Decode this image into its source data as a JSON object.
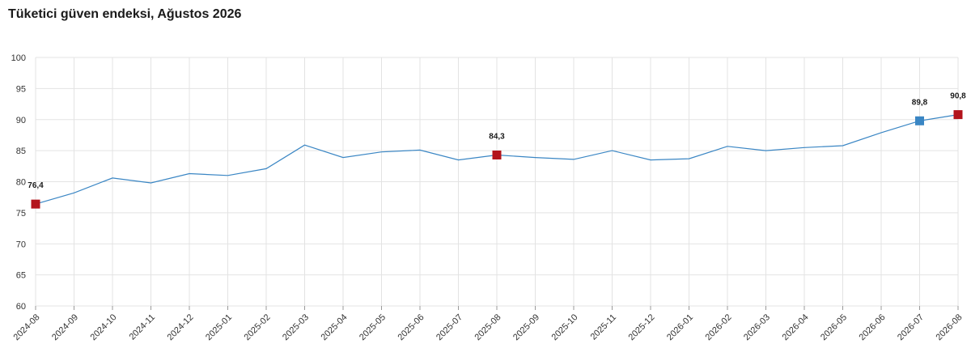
{
  "chart_data": {
    "type": "line",
    "title": "Tüketici güven endeksi, Ağustos 2026",
    "xlabel": "",
    "ylabel": "",
    "ylim": [
      60,
      100
    ],
    "yticks": [
      "100",
      "95",
      "90",
      "85",
      "80",
      "75",
      "70",
      "65",
      "60"
    ],
    "grid": true,
    "line_color": "#3a86c4",
    "categories": [
      "2024-08",
      "2024-09",
      "2024-10",
      "2024-11",
      "2024-12",
      "2025-01",
      "2025-02",
      "2025-03",
      "2025-04",
      "2025-05",
      "2025-06",
      "2025-07",
      "2025-08",
      "2025-09",
      "2025-10",
      "2025-11",
      "2025-12",
      "2026-01",
      "2026-02",
      "2026-03",
      "2026-04",
      "2026-05",
      "2026-06",
      "2026-07",
      "2026-08"
    ],
    "series": [
      {
        "values": [
          76.4,
          78.2,
          80.6,
          79.8,
          81.3,
          81.0,
          82.1,
          85.9,
          83.9,
          84.8,
          85.1,
          83.5,
          84.3,
          83.9,
          83.6,
          85.0,
          83.5,
          83.7,
          85.7,
          85.0,
          85.5,
          85.8,
          87.9,
          89.8,
          90.8
        ]
      }
    ],
    "highlights": [
      {
        "index": 0,
        "label": "76,4",
        "color": "#b3141c"
      },
      {
        "index": 12,
        "label": "84,3",
        "color": "#b3141c"
      },
      {
        "index": 23,
        "label": "89,8",
        "color": "#3a86c4"
      },
      {
        "index": 24,
        "label": "90,8",
        "color": "#b3141c"
      }
    ]
  }
}
